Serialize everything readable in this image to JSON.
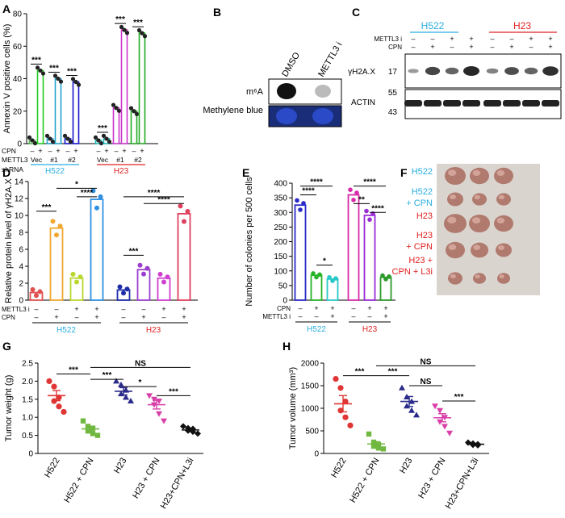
{
  "panels": {
    "A": "A",
    "B": "B",
    "C": "C",
    "D": "D",
    "E": "E",
    "F": "F",
    "G": "G",
    "H": "H"
  },
  "chart_data": [
    {
      "panel": "A",
      "type": "bar",
      "ylabel": "Annexin V positive cells (%)",
      "ylim": [
        0,
        80
      ],
      "yticks": [
        "0",
        "20",
        "40",
        "60",
        "80"
      ],
      "values": [
        2,
        45,
        3,
        40,
        3,
        38,
        2,
        3,
        22,
        70,
        20,
        68
      ],
      "colors": [
        "#4cae4c",
        "#22cc22",
        "#22a3cc",
        "#22a3cc",
        "#1414cc",
        "#1414cc",
        "#1db5b5",
        "#1db5b5",
        "#cc33cc",
        "#cc33cc",
        "#22aa22",
        "#22aa22"
      ],
      "row_labels": [
        "CPN",
        "METTL3",
        "shRNA"
      ],
      "cpn_signs": [
        "–",
        "+",
        "–",
        "+",
        "–",
        "+",
        "–",
        "+",
        "–",
        "+",
        "–",
        "+"
      ],
      "mettl3_groups": [
        "Vec",
        "#1",
        "#2",
        "Vec",
        "#1",
        "#2"
      ],
      "cell_lines": [
        "H522",
        "H23"
      ],
      "sig": [
        "***",
        "***",
        "***",
        "***",
        "***",
        "***"
      ]
    },
    {
      "panel": "D",
      "type": "bar",
      "ylabel": "Relative protein level of γH2A.X",
      "ylim": [
        0,
        14
      ],
      "yticks": [
        "0",
        "2",
        "4",
        "6",
        "8",
        "10",
        "12",
        "14"
      ],
      "values": [
        0.9,
        8.5,
        2.6,
        11.9,
        1.2,
        3.6,
        2.6,
        10.2
      ],
      "colors": [
        "#e05050",
        "#f0a830",
        "#b8d830",
        "#2f8fe0",
        "#1e2ea8",
        "#9a3ed0",
        "#d040d0",
        "#e04060"
      ],
      "row_labels": [
        "METTL3 i",
        "CPN"
      ],
      "mettl3_signs": [
        "–",
        "–",
        "+",
        "+",
        "–",
        "–",
        "+",
        "+"
      ],
      "cpn_signs": [
        "–",
        "+",
        "–",
        "+",
        "–",
        "+",
        "–",
        "+"
      ],
      "cell_lines": [
        "H522",
        "H23"
      ],
      "sig": [
        "***",
        "*",
        "****",
        "***",
        "****",
        "****"
      ]
    },
    {
      "panel": "E",
      "type": "bar",
      "ylabel": "Number of colonies per 500 cells",
      "ylim": [
        0,
        400
      ],
      "yticks": [
        "0",
        "50",
        "100",
        "150",
        "200",
        "250",
        "300",
        "350",
        "400"
      ],
      "values": [
        325,
        85,
        72,
        360,
        290,
        78
      ],
      "colors": [
        "#2a2ac8",
        "#28b428",
        "#28c8c8",
        "#d82aa8",
        "#9a2ad8",
        "#2a9a2a"
      ],
      "row_labels": [
        "CPN",
        "METTL3 i"
      ],
      "cpn_signs": [
        "–",
        "+",
        "+",
        "–",
        "+",
        "+"
      ],
      "mettl3_signs": [
        "–",
        "–",
        "+",
        "–",
        "–",
        "+"
      ],
      "cell_lines": [
        "H522",
        "H23"
      ],
      "sig": [
        "****",
        "****",
        "*",
        "**",
        "****",
        "****"
      ]
    },
    {
      "panel": "G",
      "type": "scatter",
      "ylabel": "Tumor weight (g)",
      "ylim": [
        0,
        2.5
      ],
      "yticks": [
        "0",
        "0.5",
        "1.0",
        "1.5",
        "2.0",
        "2.5"
      ],
      "categories": [
        "H522",
        "H522 + CPN",
        "H23",
        "H23 + CPN",
        "H23+CPN+L3i"
      ],
      "means": [
        1.6,
        0.68,
        1.72,
        1.35,
        0.65
      ],
      "sems": [
        0.14,
        0.06,
        0.1,
        0.12,
        0.04
      ],
      "points": [
        [
          2.0,
          1.85,
          1.55,
          1.45,
          1.3,
          1.15
        ],
        [
          0.9,
          0.75,
          0.7,
          0.62,
          0.55,
          0.5
        ],
        [
          2.0,
          1.9,
          1.75,
          1.65,
          1.55,
          1.45
        ],
        [
          1.6,
          1.5,
          1.45,
          1.35,
          1.1,
          0.9
        ],
        [
          0.75,
          0.7,
          0.68,
          0.63,
          0.6,
          0.55
        ]
      ],
      "colors": [
        "#e03535",
        "#70b840",
        "#2a2a8a",
        "#d840a8",
        "#111111"
      ],
      "sig": [
        "***",
        "***",
        "*",
        "***",
        "NS"
      ]
    },
    {
      "panel": "H",
      "type": "scatter",
      "ylabel": "Tumor volume (mm³)",
      "ylim": [
        0,
        2000
      ],
      "yticks": [
        "0",
        "500",
        "1000",
        "1500",
        "2000"
      ],
      "categories": [
        "H522",
        "H522 + CPN",
        "H23",
        "H23 + CPN",
        "H23+CPN+L3i"
      ],
      "means": [
        1100,
        210,
        1150,
        790,
        205
      ],
      "sems": [
        180,
        50,
        110,
        90,
        15
      ],
      "points": [
        [
          1650,
          1450,
          1150,
          950,
          800,
          620
        ],
        [
          430,
          250,
          200,
          160,
          120,
          100
        ],
        [
          1450,
          1250,
          1150,
          1050,
          950,
          850
        ],
        [
          1050,
          950,
          800,
          700,
          600,
          450
        ],
        [
          240,
          220,
          205,
          190,
          180
        ]
      ],
      "colors": [
        "#e03535",
        "#70b840",
        "#2a2a8a",
        "#d840a8",
        "#111111"
      ],
      "sig": [
        "***",
        "***",
        "NS",
        "***",
        "NS"
      ]
    }
  ],
  "blotB": {
    "lanes": [
      "DMSO",
      "METTL3 i"
    ],
    "rows": [
      "m⁶A",
      "Methylene blue"
    ]
  },
  "blotC": {
    "cell_lines": [
      "H522",
      "H23"
    ],
    "row_labels": [
      "METTL3 i",
      "CPN"
    ],
    "mettl3_signs": [
      "–",
      "–",
      "+",
      "+",
      "–",
      "–",
      "+",
      "+"
    ],
    "cpn_signs": [
      "–",
      "+",
      "–",
      "+",
      "–",
      "+",
      "–",
      "+"
    ],
    "bands": [
      "γH2A.X",
      "ACTIN"
    ],
    "markers": [
      "17",
      "55",
      "43"
    ],
    "gh2ax_intensity": [
      0.25,
      0.8,
      0.6,
      1.0,
      0.4,
      0.75,
      0.6,
      0.95
    ]
  },
  "photoF": {
    "labels": [
      "H522",
      "H522 + CPN",
      "H23",
      "H23 + CPN",
      "H23 + CPN + L3i"
    ],
    "colors": [
      "#2aaee0",
      "#2aaee0",
      "#e02020",
      "#e02020",
      "#e02020"
    ]
  },
  "colors": {
    "h522": "#2aaee0",
    "h23": "#e02020"
  }
}
